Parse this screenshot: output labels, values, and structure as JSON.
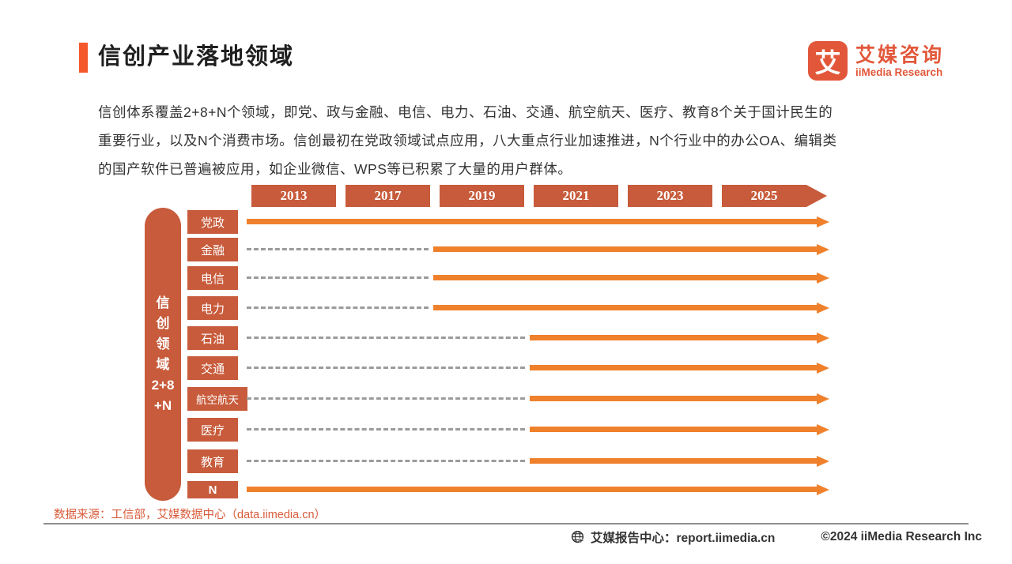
{
  "page": {
    "title": "信创产业落地领域"
  },
  "logo": {
    "glyph": "艾",
    "name_cn": "艾媒咨询",
    "name_en": "iiMedia Research"
  },
  "intro": {
    "lines": [
      "信创体系覆盖2+8+N个领域，即党、政与金融、电信、电力、石油、交通、航空航天、医疗、教育8个关于国计民生的",
      "重要行业，以及N个消费市场。信创最初在党政领域试点应用，八大重点行业加速推进，N个行业中的办公OA、编辑类",
      "的国产软件已普遍被应用，如企业微信、WPS等已积累了大量的用户群体。"
    ]
  },
  "pill": {
    "lines": [
      "信",
      "创",
      "领",
      "域",
      "2+8",
      "+N"
    ]
  },
  "chart_data": {
    "type": "timeline",
    "title": "信创产业落地领域",
    "years": [
      "2013",
      "2017",
      "2019",
      "2021",
      "2023",
      "2025"
    ],
    "axis_label": "信创领域2+8+N",
    "rows": [
      {
        "label": "党政",
        "start_year": 2013
      },
      {
        "label": "金融",
        "start_year": 2019
      },
      {
        "label": "电信",
        "start_year": 2019
      },
      {
        "label": "电力",
        "start_year": 2019
      },
      {
        "label": "石油",
        "start_year": 2021
      },
      {
        "label": "交通",
        "start_year": 2021
      },
      {
        "label": "航空航天",
        "start_year": 2021
      },
      {
        "label": "医疗",
        "start_year": 2021
      },
      {
        "label": "教育",
        "start_year": 2021
      },
      {
        "label": "N",
        "start_year": 2013
      }
    ],
    "legend": null,
    "grid": false,
    "notes": "虚线表示尚未落地阶段，橙色实线箭头表示落地推进阶段"
  },
  "colors": {
    "accent_orange": "#F4582B",
    "brick_red": "#C75B3B",
    "arrow_orange": "#F0812C",
    "dash_gray": "#9B9B9B",
    "source_orange": "#D85C3B"
  },
  "source": {
    "text": "数据来源：工信部，艾媒数据中心（data.iimedia.cn）"
  },
  "footer": {
    "report_center": "艾媒报告中心：report.iimedia.cn",
    "copyright": "©2024  iiMedia Research Inc"
  }
}
